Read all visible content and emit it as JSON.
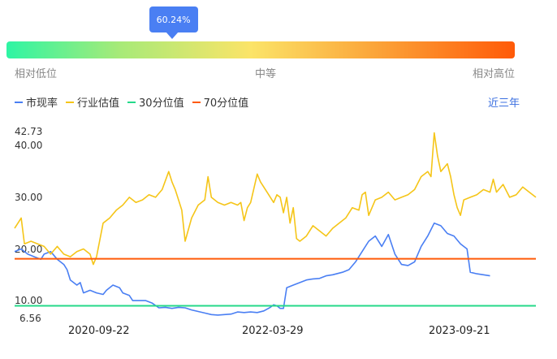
{
  "gauge": {
    "percentile_label": "60.24%",
    "percentile": 0.6024,
    "low_label": "相对低位",
    "mid_label": "中等",
    "high_label": "相对高位"
  },
  "legend": [
    {
      "name": "市现率",
      "color": "#4a7ff3"
    },
    {
      "name": "行业估值",
      "color": "#f5c518"
    },
    {
      "name": "30分位值",
      "color": "#25d98a"
    },
    {
      "name": "70分位值",
      "color": "#ff5a08"
    }
  ],
  "range_label": "近三年",
  "chart_data": {
    "type": "line",
    "y_ticks": [
      "42.73",
      "40.00",
      "30.00",
      "20.00",
      "10.00",
      "6.56"
    ],
    "ylim": [
      6.56,
      42.73
    ],
    "x_ticks": [
      "2020-09-22",
      "2022-03-29",
      "2023-09-21"
    ],
    "series": [
      {
        "name": "市现率",
        "color": "#4a7ff3",
        "points": [
          [
            0,
            19.5
          ],
          [
            0.02,
            20
          ],
          [
            0.04,
            19
          ],
          [
            0.06,
            18.5
          ],
          [
            0.08,
            18
          ],
          [
            0.09,
            19
          ],
          [
            0.11,
            19.5
          ],
          [
            0.13,
            18
          ],
          [
            0.15,
            17
          ],
          [
            0.16,
            16
          ],
          [
            0.17,
            14
          ],
          [
            0.19,
            13
          ],
          [
            0.2,
            13.5
          ],
          [
            0.21,
            11.5
          ],
          [
            0.23,
            12
          ],
          [
            0.25,
            11.5
          ],
          [
            0.27,
            11.2
          ],
          [
            0.28,
            12
          ],
          [
            0.3,
            13
          ],
          [
            0.32,
            12.5
          ],
          [
            0.33,
            11.5
          ],
          [
            0.35,
            11
          ],
          [
            0.36,
            10
          ],
          [
            0.38,
            10
          ],
          [
            0.4,
            10
          ],
          [
            0.42,
            9.5
          ],
          [
            0.44,
            8.6
          ],
          [
            0.46,
            8.7
          ],
          [
            0.48,
            8.5
          ],
          [
            0.5,
            8.7
          ],
          [
            0.52,
            8.6
          ],
          [
            0.54,
            8.2
          ],
          [
            0.56,
            7.9
          ],
          [
            0.58,
            7.6
          ],
          [
            0.6,
            7.3
          ],
          [
            0.62,
            7.2
          ],
          [
            0.64,
            7.3
          ],
          [
            0.66,
            7.4
          ],
          [
            0.68,
            7.8
          ],
          [
            0.7,
            7.7
          ],
          [
            0.72,
            7.8
          ],
          [
            0.74,
            7.7
          ],
          [
            0.76,
            8
          ],
          [
            0.78,
            8.7
          ],
          [
            0.79,
            9.2
          ],
          [
            0.8,
            9
          ],
          [
            0.81,
            8.5
          ],
          [
            0.82,
            8.5
          ],
          [
            0.83,
            12.5
          ],
          [
            0.85,
            13
          ],
          [
            0.87,
            13.5
          ],
          [
            0.89,
            14
          ],
          [
            0.91,
            14.2
          ],
          [
            0.93,
            14.3
          ],
          [
            0.95,
            14.8
          ],
          [
            0.97,
            15
          ],
          [
            1,
            15.5
          ],
          [
            1.02,
            16
          ],
          [
            1.04,
            17.5
          ],
          [
            1.06,
            19.5
          ],
          [
            1.08,
            21.5
          ],
          [
            1.1,
            22.5
          ],
          [
            1.12,
            20.5
          ],
          [
            1.14,
            22.8
          ],
          [
            1.16,
            19
          ],
          [
            1.18,
            17
          ],
          [
            1.2,
            16.8
          ],
          [
            1.22,
            17.5
          ],
          [
            1.24,
            20.5
          ],
          [
            1.26,
            22.5
          ],
          [
            1.28,
            25
          ],
          [
            1.3,
            24.5
          ],
          [
            1.32,
            23
          ],
          [
            1.34,
            22.5
          ],
          [
            1.36,
            21
          ],
          [
            1.38,
            20
          ],
          [
            1.39,
            15.5
          ],
          [
            1.41,
            15.2
          ],
          [
            1.43,
            15
          ],
          [
            1.45,
            14.8
          ]
        ]
      },
      {
        "name": "行业估值",
        "color": "#f5c518",
        "points": [
          [
            0,
            24
          ],
          [
            0.02,
            26
          ],
          [
            0.03,
            21
          ],
          [
            0.05,
            21.5
          ],
          [
            0.07,
            21
          ],
          [
            0.09,
            20.5
          ],
          [
            0.11,
            19
          ],
          [
            0.13,
            20.5
          ],
          [
            0.15,
            19
          ],
          [
            0.17,
            18.5
          ],
          [
            0.19,
            19.5
          ],
          [
            0.21,
            20
          ],
          [
            0.23,
            19
          ],
          [
            0.24,
            17
          ],
          [
            0.25,
            18.5
          ],
          [
            0.27,
            25
          ],
          [
            0.29,
            26
          ],
          [
            0.31,
            27.5
          ],
          [
            0.33,
            28.5
          ],
          [
            0.35,
            30
          ],
          [
            0.37,
            29
          ],
          [
            0.39,
            29.5
          ],
          [
            0.41,
            30.5
          ],
          [
            0.43,
            30
          ],
          [
            0.45,
            31.5
          ],
          [
            0.47,
            35
          ],
          [
            0.48,
            33
          ],
          [
            0.49,
            31.5
          ],
          [
            0.5,
            29.5
          ],
          [
            0.51,
            27.5
          ],
          [
            0.52,
            21.5
          ],
          [
            0.54,
            26
          ],
          [
            0.56,
            28.5
          ],
          [
            0.58,
            29.5
          ],
          [
            0.59,
            34
          ],
          [
            0.6,
            30
          ],
          [
            0.62,
            29
          ],
          [
            0.64,
            28.5
          ],
          [
            0.66,
            29
          ],
          [
            0.68,
            28.5
          ],
          [
            0.69,
            29
          ],
          [
            0.7,
            25.5
          ],
          [
            0.71,
            28
          ],
          [
            0.72,
            29
          ],
          [
            0.74,
            34.5
          ],
          [
            0.75,
            33
          ],
          [
            0.77,
            31
          ],
          [
            0.79,
            29
          ],
          [
            0.8,
            30.5
          ],
          [
            0.81,
            30
          ],
          [
            0.82,
            27
          ],
          [
            0.83,
            30
          ],
          [
            0.84,
            25
          ],
          [
            0.85,
            28
          ],
          [
            0.86,
            22
          ],
          [
            0.87,
            21.5
          ],
          [
            0.89,
            22.5
          ],
          [
            0.91,
            24.5
          ],
          [
            0.93,
            23.5
          ],
          [
            0.95,
            22.5
          ],
          [
            0.97,
            24
          ],
          [
            0.99,
            25
          ],
          [
            1.01,
            26
          ],
          [
            1.03,
            28
          ],
          [
            1.05,
            27.5
          ],
          [
            1.06,
            30.5
          ],
          [
            1.07,
            31
          ],
          [
            1.08,
            26.5
          ],
          [
            1.1,
            29.5
          ],
          [
            1.12,
            30
          ],
          [
            1.14,
            31
          ],
          [
            1.16,
            29.5
          ],
          [
            1.18,
            30
          ],
          [
            1.2,
            30.5
          ],
          [
            1.22,
            31.5
          ],
          [
            1.24,
            34
          ],
          [
            1.26,
            35
          ],
          [
            1.27,
            34
          ],
          [
            1.28,
            42.5
          ],
          [
            1.29,
            38
          ],
          [
            1.3,
            35
          ],
          [
            1.32,
            36.5
          ],
          [
            1.33,
            34
          ],
          [
            1.34,
            30.5
          ],
          [
            1.35,
            28
          ],
          [
            1.36,
            26.5
          ],
          [
            1.37,
            29.5
          ],
          [
            1.39,
            30
          ],
          [
            1.41,
            30.5
          ],
          [
            1.43,
            31.5
          ],
          [
            1.45,
            31
          ],
          [
            1.46,
            33.5
          ],
          [
            1.47,
            31
          ],
          [
            1.49,
            32.5
          ],
          [
            1.51,
            30
          ],
          [
            1.53,
            30.5
          ],
          [
            1.55,
            32
          ],
          [
            1.57,
            31
          ],
          [
            1.59,
            30
          ]
        ]
      }
    ],
    "reference_lines": [
      {
        "name": "30分位值",
        "value": 9.0,
        "color": "#25d98a"
      },
      {
        "name": "70分位值",
        "value": 18.1,
        "color": "#ff5a08"
      }
    ]
  }
}
